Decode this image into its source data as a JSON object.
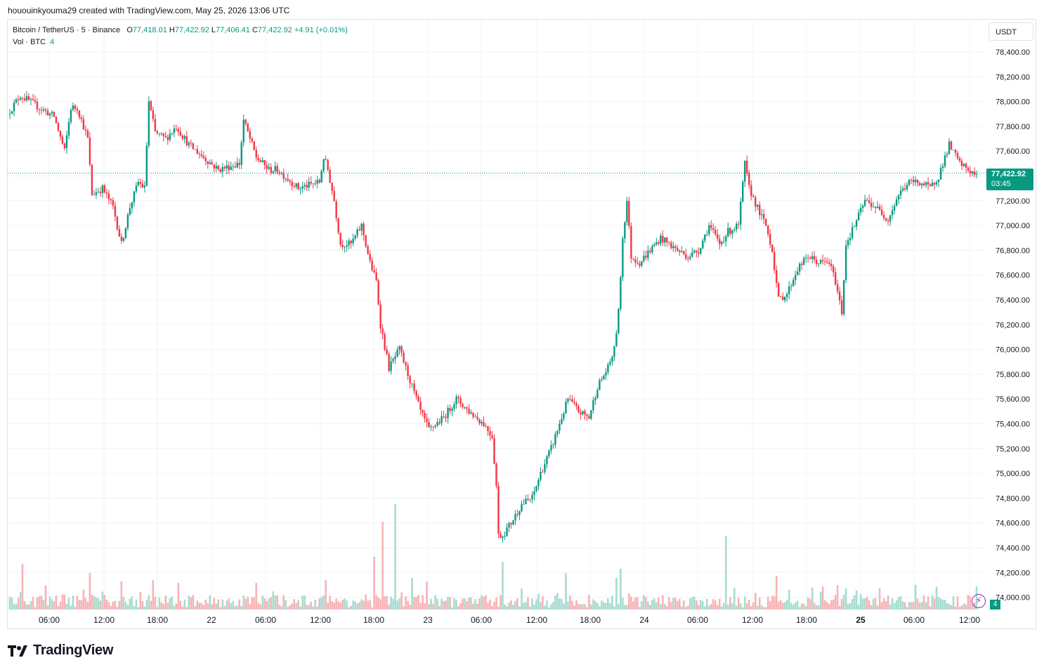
{
  "header": {
    "caption": "hououinkyouma29 created with TradingView.com, May 25, 2026 13:06 UTC"
  },
  "legend": {
    "symbol": "Bitcoin / TetherUS · 5 · Binance",
    "open_label": "O",
    "open": "77,418.01",
    "high_label": "H",
    "high": "77,422.92",
    "low_label": "L",
    "low": "77,406.41",
    "close_label": "C",
    "close": "77,422.92",
    "change": "+4.91 (+0.01%)",
    "vol_label": "Vol · BTC",
    "vol": "4"
  },
  "currency_button": "USDT",
  "last_price": {
    "value": "77,422.92",
    "countdown": "03:45"
  },
  "volume_tag": "4",
  "colors": {
    "up": "#089981",
    "down": "#f23645",
    "up_vol": "#a7dccf",
    "down_vol": "#f7b3b6",
    "grid": "#f0f3fa"
  },
  "footer": {
    "brand": "TradingView"
  },
  "chart_data": {
    "type": "candlestick",
    "symbol": "Bitcoin / TetherUS",
    "interval": "5",
    "exchange": "Binance",
    "y_ticks": [
      "78,400.00",
      "78,200.00",
      "78,000.00",
      "77,800.00",
      "77,600.00",
      "77,400.00",
      "77,200.00",
      "77,000.00",
      "76,800.00",
      "76,600.00",
      "76,400.00",
      "76,200.00",
      "76,000.00",
      "75,800.00",
      "75,600.00",
      "75,400.00",
      "75,200.00",
      "75,000.00",
      "74,800.00",
      "74,600.00",
      "74,400.00",
      "74,200.00",
      "74,000.00"
    ],
    "x_ticks": [
      "06:00",
      "12:00",
      "18:00",
      "22",
      "06:00",
      "12:00",
      "18:00",
      "23",
      "06:00",
      "12:00",
      "18:00",
      "24",
      "06:00",
      "12:00",
      "18:00",
      "25",
      "06:00",
      "12:00"
    ],
    "ylim": [
      73950,
      78500
    ],
    "price_path": [
      [
        0,
        77900
      ],
      [
        6,
        78050
      ],
      [
        15,
        77950
      ],
      [
        22,
        77880
      ],
      [
        27,
        77600
      ],
      [
        30,
        77950
      ],
      [
        33,
        77950
      ],
      [
        38,
        77700
      ],
      [
        40,
        77250
      ],
      [
        45,
        77300
      ],
      [
        50,
        77150
      ],
      [
        54,
        76850
      ],
      [
        58,
        77150
      ],
      [
        62,
        77350
      ],
      [
        65,
        77300
      ],
      [
        67,
        78000
      ],
      [
        70,
        77750
      ],
      [
        75,
        77700
      ],
      [
        80,
        77800
      ],
      [
        86,
        77650
      ],
      [
        100,
        77450
      ],
      [
        110,
        77500
      ],
      [
        112,
        77850
      ],
      [
        118,
        77550
      ],
      [
        124,
        77450
      ],
      [
        128,
        77450
      ],
      [
        138,
        77300
      ],
      [
        148,
        77350
      ],
      [
        150,
        77550
      ],
      [
        152,
        77450
      ],
      [
        155,
        77200
      ],
      [
        158,
        76850
      ],
      [
        163,
        76850
      ],
      [
        168,
        77000
      ],
      [
        172,
        76700
      ],
      [
        175,
        76550
      ],
      [
        177,
        76200
      ],
      [
        181,
        75850
      ],
      [
        186,
        76000
      ],
      [
        190,
        75800
      ],
      [
        196,
        75500
      ],
      [
        200,
        75350
      ],
      [
        207,
        75450
      ],
      [
        213,
        75600
      ],
      [
        219,
        75500
      ],
      [
        226,
        75400
      ],
      [
        230,
        75300
      ],
      [
        232,
        74900
      ],
      [
        233,
        74500
      ],
      [
        235,
        74500
      ],
      [
        239,
        74600
      ],
      [
        244,
        74750
      ],
      [
        249,
        74800
      ],
      [
        253,
        75000
      ],
      [
        258,
        75200
      ],
      [
        263,
        75450
      ],
      [
        266,
        75600
      ],
      [
        271,
        75500
      ],
      [
        276,
        75450
      ],
      [
        280,
        75700
      ],
      [
        285,
        75850
      ],
      [
        288,
        76000
      ],
      [
        290,
        76300
      ],
      [
        292,
        76900
      ],
      [
        294,
        77200
      ],
      [
        296,
        76750
      ],
      [
        300,
        76700
      ],
      [
        305,
        76800
      ],
      [
        310,
        76900
      ],
      [
        318,
        76800
      ],
      [
        323,
        76750
      ],
      [
        328,
        76800
      ],
      [
        333,
        77000
      ],
      [
        338,
        76850
      ],
      [
        342,
        76950
      ],
      [
        347,
        77000
      ],
      [
        350,
        77500
      ],
      [
        352,
        77300
      ],
      [
        357,
        77100
      ],
      [
        360,
        77000
      ],
      [
        363,
        76800
      ],
      [
        366,
        76400
      ],
      [
        370,
        76450
      ],
      [
        375,
        76650
      ],
      [
        380,
        76750
      ],
      [
        385,
        76700
      ],
      [
        390,
        76700
      ],
      [
        393,
        76550
      ],
      [
        396,
        76300
      ],
      [
        398,
        76850
      ],
      [
        402,
        77000
      ],
      [
        407,
        77200
      ],
      [
        412,
        77150
      ],
      [
        418,
        77050
      ],
      [
        423,
        77250
      ],
      [
        428,
        77350
      ],
      [
        433,
        77350
      ],
      [
        438,
        77300
      ],
      [
        442,
        77400
      ],
      [
        447,
        77650
      ],
      [
        452,
        77500
      ],
      [
        456,
        77450
      ],
      [
        460,
        77400
      ]
    ],
    "volume": {
      "label": "Vol · BTC",
      "last": 4,
      "spikes": [
        [
          6,
          65
        ],
        [
          38,
          52
        ],
        [
          53,
          40
        ],
        [
          68,
          42
        ],
        [
          80,
          38
        ],
        [
          117,
          38
        ],
        [
          150,
          42
        ],
        [
          173,
          75
        ],
        [
          177,
          125
        ],
        [
          183,
          150
        ],
        [
          191,
          45
        ],
        [
          198,
          40
        ],
        [
          234,
          68
        ],
        [
          264,
          52
        ],
        [
          288,
          45
        ],
        [
          290,
          58
        ],
        [
          340,
          105
        ],
        [
          364,
          48
        ],
        [
          393,
          35
        ],
        [
          397,
          30
        ],
        [
          430,
          35
        ]
      ],
      "typical_max": 18
    },
    "grid": true,
    "legend_position": "top-left"
  }
}
